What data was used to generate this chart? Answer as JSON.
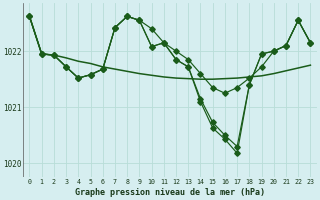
{
  "title": "Graphe pression niveau de la mer (hPa)",
  "background_color": "#d6eef0",
  "grid_color": "#b8ddd8",
  "line_color": "#1a5c1a",
  "xlim": [
    -0.5,
    23.5
  ],
  "ylim": [
    1019.75,
    1022.85
  ],
  "yticks": [
    1020,
    1021,
    1022
  ],
  "x_labels": [
    "0",
    "1",
    "2",
    "3",
    "4",
    "5",
    "6",
    "7",
    "8",
    "9",
    "10",
    "11",
    "12",
    "13",
    "14",
    "15",
    "16",
    "17",
    "18",
    "19",
    "20",
    "21",
    "22",
    "23"
  ],
  "series_smooth": [
    1022.62,
    1021.95,
    1021.93,
    1021.88,
    1021.82,
    1021.78,
    1021.72,
    1021.68,
    1021.64,
    1021.6,
    1021.57,
    1021.54,
    1021.52,
    1021.51,
    1021.5,
    1021.5,
    1021.51,
    1021.52,
    1021.54,
    1021.56,
    1021.6,
    1021.65,
    1021.7,
    1021.75
  ],
  "series_main": [
    1022.62,
    1021.95,
    1021.93,
    1021.72,
    1021.52,
    1021.58,
    1021.68,
    1022.42,
    1022.62,
    1022.55,
    1022.4,
    1022.15,
    1022.0,
    1021.85,
    1021.6,
    1021.35,
    1021.25,
    1021.35,
    1021.52,
    1021.72,
    1022.0,
    1022.1,
    1022.55,
    1022.15
  ],
  "series_deep": [
    1022.62,
    1021.95,
    1021.93,
    1021.72,
    1021.52,
    1021.58,
    1021.68,
    1022.42,
    1022.62,
    1022.55,
    1022.08,
    1022.15,
    1021.85,
    1021.72,
    1021.15,
    1020.73,
    1020.5,
    1020.3,
    1021.4,
    1021.95,
    1022.0,
    1022.1,
    1022.55,
    1022.15
  ],
  "series_deepest": [
    1022.62,
    1021.95,
    1021.93,
    1021.72,
    1021.52,
    1021.58,
    1021.68,
    1022.42,
    1022.62,
    1022.55,
    1022.08,
    1022.15,
    1021.85,
    1021.72,
    1021.1,
    1020.63,
    1020.43,
    1020.18,
    1021.4,
    1021.95,
    1022.0,
    1022.1,
    1022.55,
    1022.15
  ]
}
